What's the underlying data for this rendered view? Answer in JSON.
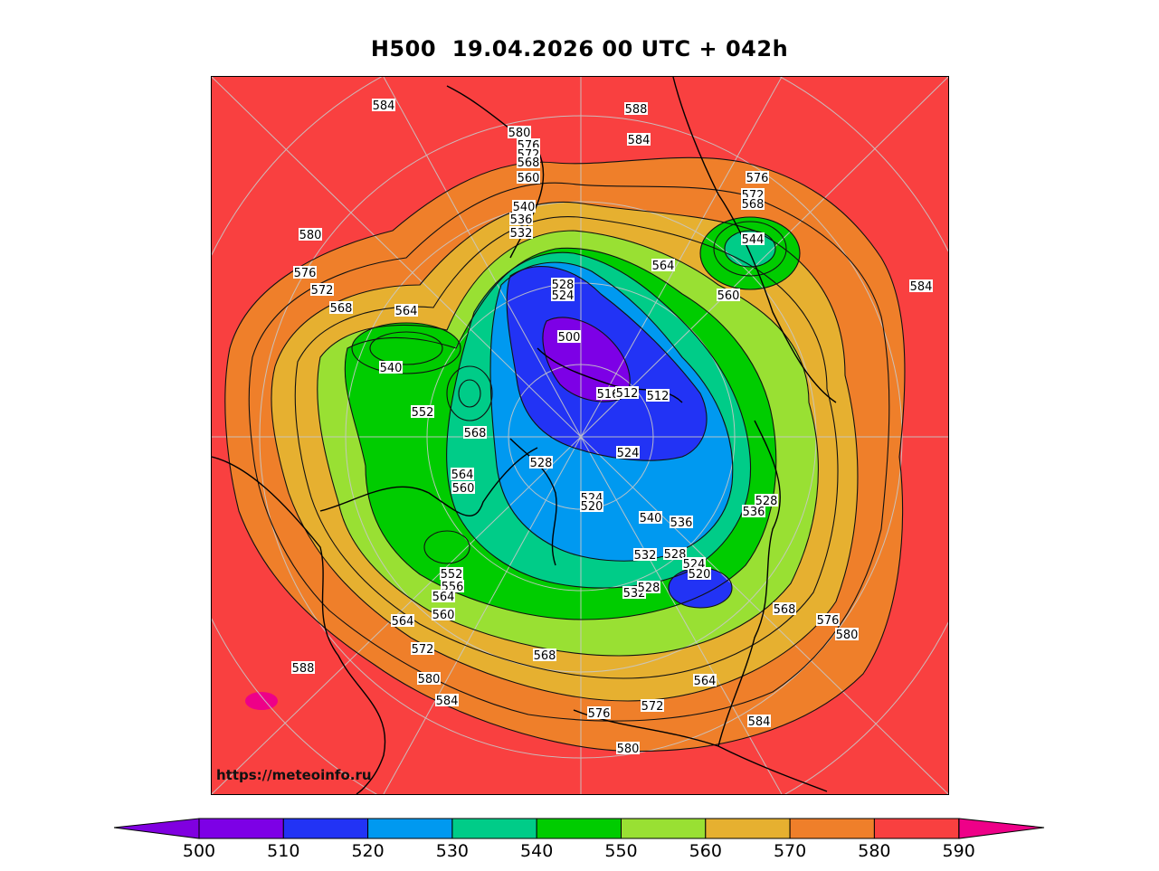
{
  "title": "H500  19.04.2026 00 UTC + 042h",
  "watermark": "https://meteoinfo.ru",
  "colorbar": {
    "ticks": [
      "500",
      "510",
      "520",
      "530",
      "540",
      "550",
      "560",
      "570",
      "580",
      "590"
    ],
    "colors": [
      "#8000e0",
      "#7d00e6",
      "#2233f5",
      "#0099f0",
      "#00cc88",
      "#00cc00",
      "#99e033",
      "#e6b030",
      "#ef7f2a",
      "#f94040",
      "#ee0088"
    ]
  },
  "contour_labels": [
    {
      "text": "584"
    },
    {
      "text": "588"
    },
    {
      "text": "580"
    },
    {
      "text": "584"
    },
    {
      "text": "576"
    },
    {
      "text": "572"
    },
    {
      "text": "568"
    },
    {
      "text": "560"
    },
    {
      "text": "540"
    },
    {
      "text": "536"
    },
    {
      "text": "532"
    },
    {
      "text": "580"
    },
    {
      "text": "576"
    },
    {
      "text": "572"
    },
    {
      "text": "568"
    },
    {
      "text": "564"
    },
    {
      "text": "540"
    },
    {
      "text": "552"
    },
    {
      "text": "568"
    },
    {
      "text": "564"
    },
    {
      "text": "560"
    },
    {
      "text": "528"
    },
    {
      "text": "524"
    },
    {
      "text": "500"
    },
    {
      "text": "516"
    },
    {
      "text": "512"
    },
    {
      "text": "512"
    },
    {
      "text": "524"
    },
    {
      "text": "528"
    },
    {
      "text": "524"
    },
    {
      "text": "520"
    },
    {
      "text": "540"
    },
    {
      "text": "536"
    },
    {
      "text": "532"
    },
    {
      "text": "528"
    },
    {
      "text": "524"
    },
    {
      "text": "520"
    },
    {
      "text": "532"
    },
    {
      "text": "528"
    },
    {
      "text": "564"
    },
    {
      "text": "576"
    },
    {
      "text": "572"
    },
    {
      "text": "568"
    },
    {
      "text": "544"
    },
    {
      "text": "560"
    },
    {
      "text": "584"
    },
    {
      "text": "528"
    },
    {
      "text": "536"
    },
    {
      "text": "568"
    },
    {
      "text": "576"
    },
    {
      "text": "580"
    },
    {
      "text": "564"
    },
    {
      "text": "556"
    },
    {
      "text": "552"
    },
    {
      "text": "560"
    },
    {
      "text": "564"
    },
    {
      "text": "572"
    },
    {
      "text": "588"
    },
    {
      "text": "580"
    },
    {
      "text": "584"
    },
    {
      "text": "568"
    },
    {
      "text": "576"
    },
    {
      "text": "572"
    },
    {
      "text": "580"
    },
    {
      "text": "584"
    },
    {
      "text": "564"
    }
  ]
}
